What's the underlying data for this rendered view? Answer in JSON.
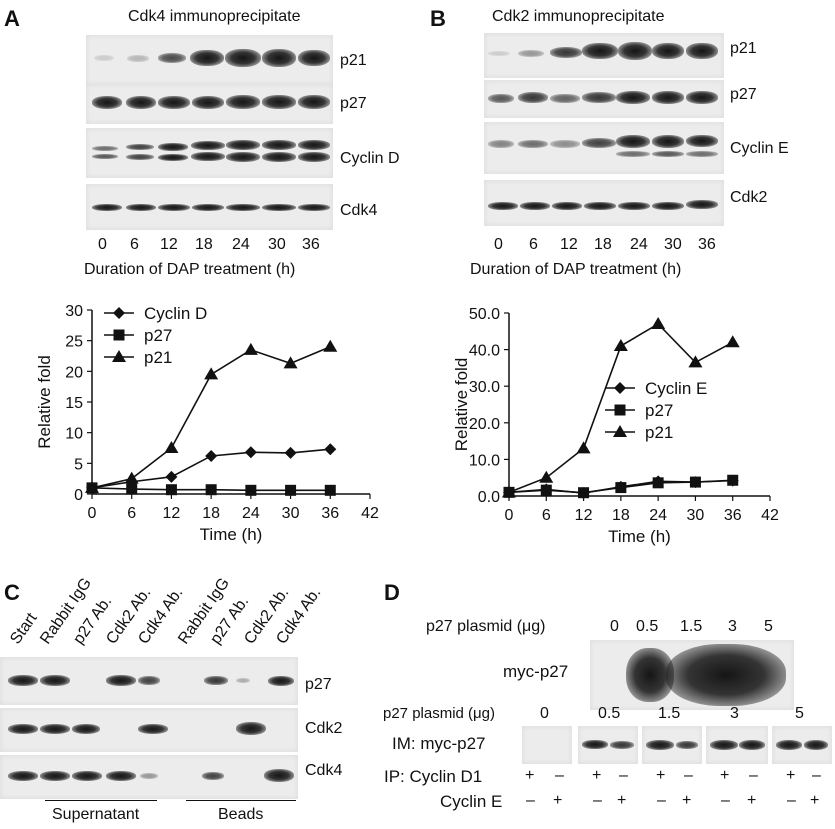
{
  "panelA": {
    "letter": "A",
    "title": "Cdk4 immunoprecipitate",
    "blot_labels": [
      "p21",
      "p27",
      "Cyclin D",
      "Cdk4"
    ],
    "lanes": [
      "0",
      "6",
      "12",
      "18",
      "24",
      "30",
      "36"
    ],
    "xlabel": "Duration of DAP treatment (h)"
  },
  "panelB": {
    "letter": "B",
    "title": "Cdk2 immunoprecipitate",
    "blot_labels": [
      "p21",
      "p27",
      "Cyclin E",
      "Cdk2"
    ],
    "lanes": [
      "0",
      "6",
      "12",
      "18",
      "24",
      "30",
      "36"
    ],
    "xlabel": "Duration of DAP treatment (h)"
  },
  "panelC": {
    "letter": "C",
    "lane_labels": [
      "Start",
      "Rabbit IgG",
      "p27 Ab.",
      "Cdk2 Ab.",
      "Cdk4 Ab.",
      "Rabbit IgG",
      "p27 Ab.",
      "Cdk2 Ab.",
      "Cdk4 Ab."
    ],
    "blot_labels": [
      "p27",
      "Cdk2",
      "Cdk4"
    ],
    "group_labels": [
      "Supernatant",
      "Beads"
    ]
  },
  "panelD": {
    "letter": "D",
    "top_row_label": "p27 plasmid (μg)",
    "top_doses": [
      "0",
      "0.5",
      "1.5",
      "3",
      "5"
    ],
    "top_blot_label": "myc-p27",
    "bottom_row_label": "p27 plasmid (μg)",
    "bottom_doses": [
      "0",
      "0.5",
      "1.5",
      "3",
      "5"
    ],
    "bottom_blot_label": "IM: myc-p27",
    "ip_row_label": "IP: Cyclin D1",
    "ip_row_signs": [
      "+",
      "–",
      "+",
      "–",
      "+",
      "–",
      "+",
      "–",
      "+",
      "–"
    ],
    "cyc_row_label": "Cyclin E",
    "cyc_row_signs": [
      "–",
      "+",
      "–",
      "+",
      "–",
      "+",
      "–",
      "+",
      "–",
      "+"
    ]
  },
  "chart_data": [
    {
      "type": "line",
      "xlabel": "Time (h)",
      "ylabel": "Relative fold",
      "x": [
        0,
        6,
        12,
        18,
        24,
        30,
        36
      ],
      "xticks": [
        "0",
        "6",
        "12",
        "18",
        "24",
        "30",
        "36",
        "42"
      ],
      "yticks": [
        "0",
        "5",
        "10",
        "15",
        "20",
        "25",
        "30"
      ],
      "xlim": [
        0,
        42
      ],
      "ylim": [
        0,
        30
      ],
      "legend_placement": "top-left",
      "series": [
        {
          "name": "Cyclin D",
          "marker": "diamond",
          "values": [
            1.0,
            2.0,
            2.8,
            6.2,
            6.8,
            6.7,
            7.3
          ]
        },
        {
          "name": "p27",
          "marker": "square",
          "values": [
            1.0,
            0.8,
            0.7,
            0.7,
            0.6,
            0.6,
            0.6
          ]
        },
        {
          "name": "p21",
          "marker": "triangle",
          "values": [
            1.0,
            2.5,
            7.5,
            19.5,
            23.5,
            21.3,
            24.0
          ]
        }
      ]
    },
    {
      "type": "line",
      "xlabel": "Time (h)",
      "ylabel": "Relative fold",
      "x": [
        0,
        6,
        12,
        18,
        24,
        30,
        36
      ],
      "xticks": [
        "0",
        "6",
        "12",
        "18",
        "24",
        "30",
        "36",
        "42"
      ],
      "yticks": [
        "0.0",
        "10.0",
        "20.0",
        "30.0",
        "40.0",
        "50.0"
      ],
      "xlim": [
        0,
        42
      ],
      "ylim": [
        0,
        50
      ],
      "legend_placement": "middle-right",
      "series": [
        {
          "name": "Cyclin E",
          "marker": "diamond",
          "values": [
            1.0,
            1.8,
            0.8,
            2.5,
            4.0,
            3.8,
            4.2
          ]
        },
        {
          "name": "p27",
          "marker": "square",
          "values": [
            1.0,
            1.6,
            0.9,
            2.3,
            3.6,
            3.8,
            4.3
          ]
        },
        {
          "name": "p21",
          "marker": "triangle",
          "values": [
            1.0,
            5.0,
            13.0,
            41.0,
            47.0,
            36.5,
            42.0
          ]
        }
      ]
    }
  ]
}
